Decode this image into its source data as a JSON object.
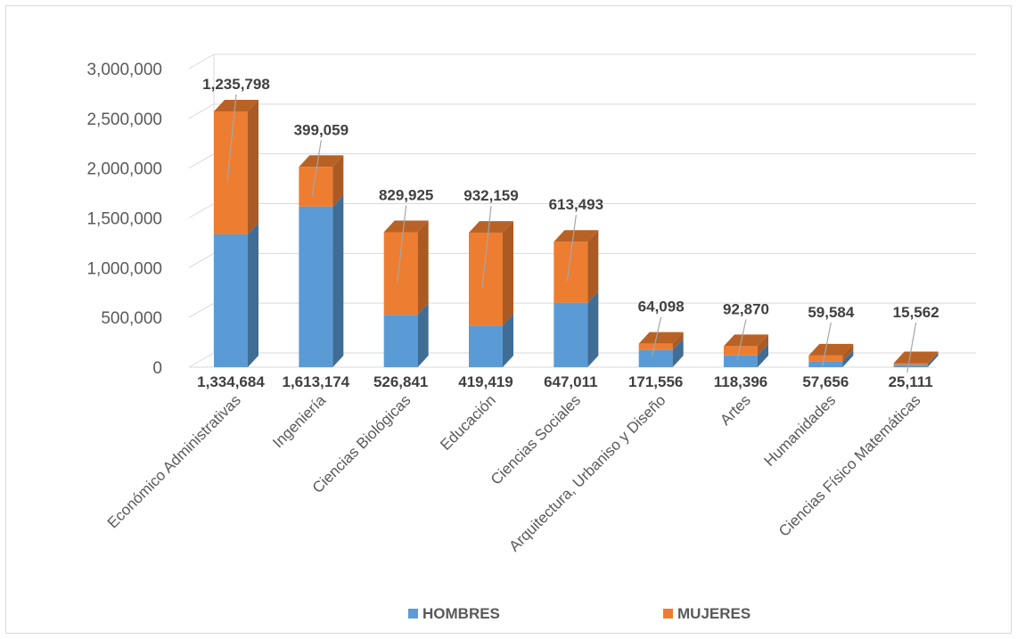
{
  "chart_data": {
    "type": "bar",
    "stacked": true,
    "style": "3d-column",
    "title": "",
    "xlabel": "",
    "ylabel": "",
    "ylim": [
      0,
      3000000
    ],
    "yticks": [
      0,
      500000,
      1000000,
      1500000,
      2000000,
      2500000,
      3000000
    ],
    "ytick_labels": [
      "0",
      "500,000",
      "1,000,000",
      "1,500,000",
      "2,000,000",
      "2,500,000",
      "3,000,000"
    ],
    "grid": true,
    "legend": "bottom",
    "categories": [
      "Económico Administrativas",
      "Ingeniería",
      "Ciencias Biológicas",
      "Educación",
      "Ciencias Sociales",
      "Arquitectura, Urbaniso y Diseño",
      "Artes",
      "Humanidades",
      "Ciencias Físico Matemáticas"
    ],
    "series": [
      {
        "name": "HOMBRES",
        "color": "#5b9bd5",
        "values": [
          1334684,
          1613174,
          526841,
          419419,
          647011,
          171556,
          118396,
          57656,
          25111
        ],
        "labels": [
          "1,334,684",
          "1,613,174",
          "526,841",
          "419,419",
          "647,011",
          "171,556",
          "118,396",
          "57,656",
          "25,111"
        ]
      },
      {
        "name": "MUJERES",
        "color": "#ed7d31",
        "values": [
          1235798,
          399059,
          829925,
          932159,
          613493,
          64098,
          92870,
          59584,
          15562
        ],
        "labels": [
          "1,235,798",
          "399,059",
          "829,925",
          "932,159",
          "613,493",
          "64,098",
          "92,870",
          "59,584",
          "15,562"
        ]
      }
    ]
  }
}
